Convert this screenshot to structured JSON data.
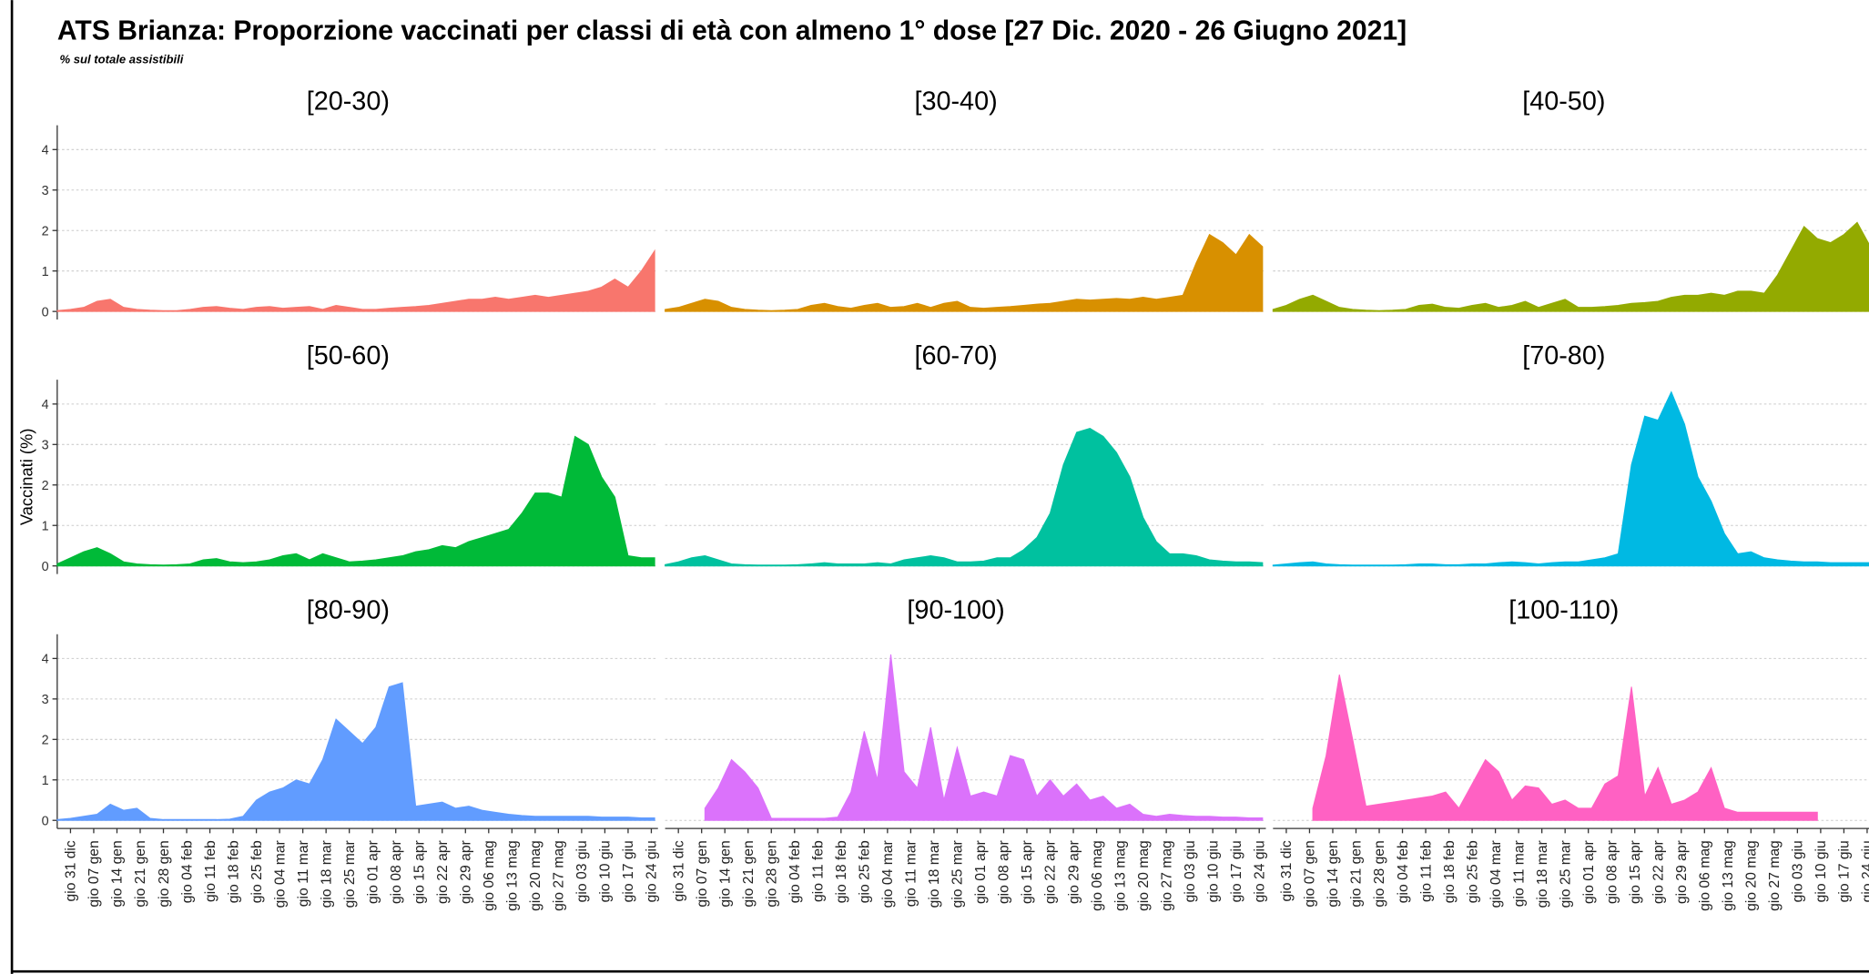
{
  "chart_data": {
    "type": "area",
    "title": "ATS Brianza: Proporzione vaccinati per classi di età con almeno 1° dose [27 Dic. 2020 - 26 Giugno 2021]",
    "subtitle": "% sul totale assistibili",
    "ylabel": "Vaccinati (%)",
    "x": [
      -4,
      0,
      4,
      8,
      12,
      16,
      20,
      24,
      28,
      32,
      36,
      40,
      44,
      48,
      52,
      56,
      60,
      64,
      68,
      72,
      76,
      80,
      84,
      88,
      92,
      96,
      100,
      104,
      108,
      112,
      116,
      120,
      124,
      128,
      132,
      136,
      140,
      144,
      148,
      152,
      156,
      160,
      164,
      168,
      172,
      176
    ],
    "xlim": [
      -4,
      177
    ],
    "xticks": [
      {
        "value": 0,
        "label": "gio 31 dic"
      },
      {
        "value": 7,
        "label": "gio 07 gen"
      },
      {
        "value": 14,
        "label": "gio 14 gen"
      },
      {
        "value": 21,
        "label": "gio 21 gen"
      },
      {
        "value": 28,
        "label": "gio 28 gen"
      },
      {
        "value": 35,
        "label": "gio 04 feb"
      },
      {
        "value": 42,
        "label": "gio 11 feb"
      },
      {
        "value": 49,
        "label": "gio 18 feb"
      },
      {
        "value": 56,
        "label": "gio 25 feb"
      },
      {
        "value": 63,
        "label": "gio 04 mar"
      },
      {
        "value": 70,
        "label": "gio 11 mar"
      },
      {
        "value": 77,
        "label": "gio 18 mar"
      },
      {
        "value": 84,
        "label": "gio 25 mar"
      },
      {
        "value": 91,
        "label": "gio 01 apr"
      },
      {
        "value": 98,
        "label": "gio 08 apr"
      },
      {
        "value": 105,
        "label": "gio 15 apr"
      },
      {
        "value": 112,
        "label": "gio 22 apr"
      },
      {
        "value": 119,
        "label": "gio 29 apr"
      },
      {
        "value": 126,
        "label": "gio 06 mag"
      },
      {
        "value": 133,
        "label": "gio 13 mag"
      },
      {
        "value": 140,
        "label": "gio 20 mag"
      },
      {
        "value": 147,
        "label": "gio 27 mag"
      },
      {
        "value": 154,
        "label": "gio 03 giu"
      },
      {
        "value": 161,
        "label": "gio 10 giu"
      },
      {
        "value": 168,
        "label": "gio 17 giu"
      },
      {
        "value": 175,
        "label": "gio 24 giu"
      }
    ],
    "ylim": [
      -0.2,
      4.6
    ],
    "yticks": [
      0,
      1,
      2,
      3,
      4
    ],
    "grid": true,
    "facets": [
      {
        "name": "[20-30)",
        "color": "#F8766D",
        "values": [
          0.02,
          0.05,
          0.1,
          0.25,
          0.3,
          0.1,
          0.05,
          0.03,
          0.02,
          0.02,
          0.05,
          0.1,
          0.12,
          0.08,
          0.05,
          0.1,
          0.12,
          0.08,
          0.1,
          0.12,
          0.05,
          0.15,
          0.1,
          0.05,
          0.05,
          0.08,
          0.1,
          0.12,
          0.15,
          0.2,
          0.25,
          0.3,
          0.3,
          0.35,
          0.3,
          0.35,
          0.4,
          0.35,
          0.4,
          0.45,
          0.5,
          0.6,
          0.8,
          0.6,
          1.0,
          1.5
        ]
      },
      {
        "name": "[30-40)",
        "color": "#D89000",
        "values": [
          0.05,
          0.1,
          0.2,
          0.3,
          0.25,
          0.1,
          0.05,
          0.03,
          0.02,
          0.03,
          0.05,
          0.15,
          0.2,
          0.12,
          0.08,
          0.15,
          0.2,
          0.1,
          0.12,
          0.2,
          0.1,
          0.2,
          0.25,
          0.1,
          0.08,
          0.1,
          0.12,
          0.15,
          0.18,
          0.2,
          0.25,
          0.3,
          0.28,
          0.3,
          0.32,
          0.3,
          0.35,
          0.3,
          0.35,
          0.4,
          1.2,
          1.9,
          1.7,
          1.4,
          1.9,
          1.6
        ]
      },
      {
        "name": "[40-50)",
        "color": "#93AA00",
        "values": [
          0.05,
          0.15,
          0.3,
          0.4,
          0.25,
          0.1,
          0.05,
          0.03,
          0.02,
          0.03,
          0.05,
          0.15,
          0.18,
          0.1,
          0.08,
          0.15,
          0.2,
          0.1,
          0.15,
          0.25,
          0.1,
          0.2,
          0.3,
          0.1,
          0.1,
          0.12,
          0.15,
          0.2,
          0.22,
          0.25,
          0.35,
          0.4,
          0.4,
          0.45,
          0.4,
          0.5,
          0.5,
          0.45,
          0.9,
          1.5,
          2.1,
          1.8,
          1.7,
          1.9,
          2.2,
          1.6
        ]
      },
      {
        "name": "[50-60)",
        "color": "#00BA38",
        "values": [
          0.05,
          0.2,
          0.35,
          0.45,
          0.3,
          0.1,
          0.05,
          0.03,
          0.02,
          0.03,
          0.05,
          0.15,
          0.18,
          0.1,
          0.08,
          0.1,
          0.15,
          0.25,
          0.3,
          0.15,
          0.3,
          0.2,
          0.1,
          0.12,
          0.15,
          0.2,
          0.25,
          0.35,
          0.4,
          0.5,
          0.45,
          0.6,
          0.7,
          0.8,
          0.9,
          1.3,
          1.8,
          1.8,
          1.7,
          3.2,
          3.0,
          2.2,
          1.7,
          0.25,
          0.2,
          0.2
        ]
      },
      {
        "name": "[60-70)",
        "color": "#00C19F",
        "values": [
          0.03,
          0.1,
          0.2,
          0.25,
          0.15,
          0.05,
          0.03,
          0.02,
          0.02,
          0.02,
          0.03,
          0.05,
          0.08,
          0.05,
          0.05,
          0.05,
          0.08,
          0.05,
          0.15,
          0.2,
          0.25,
          0.2,
          0.1,
          0.1,
          0.12,
          0.2,
          0.2,
          0.4,
          0.7,
          1.3,
          2.5,
          3.3,
          3.4,
          3.2,
          2.8,
          2.2,
          1.2,
          0.6,
          0.3,
          0.3,
          0.25,
          0.15,
          0.12,
          0.1,
          0.1,
          0.08
        ]
      },
      {
        "name": "[70-80)",
        "color": "#00B9E3",
        "values": [
          0.02,
          0.05,
          0.08,
          0.1,
          0.05,
          0.03,
          0.02,
          0.02,
          0.02,
          0.02,
          0.03,
          0.05,
          0.05,
          0.03,
          0.03,
          0.05,
          0.05,
          0.08,
          0.1,
          0.08,
          0.05,
          0.08,
          0.1,
          0.1,
          0.15,
          0.2,
          0.3,
          2.5,
          3.7,
          3.6,
          4.3,
          3.5,
          2.2,
          1.6,
          0.8,
          0.3,
          0.35,
          0.2,
          0.15,
          0.12,
          0.1,
          0.1,
          0.08,
          0.08,
          0.08,
          0.08
        ]
      },
      {
        "name": "[80-90)",
        "color": "#619CFF",
        "values": [
          0.02,
          0.05,
          0.1,
          0.15,
          0.4,
          0.25,
          0.3,
          0.05,
          0.02,
          0.02,
          0.02,
          0.02,
          0.02,
          0.03,
          0.1,
          0.5,
          0.7,
          0.8,
          1.0,
          0.9,
          1.5,
          2.5,
          2.2,
          1.9,
          2.3,
          3.3,
          3.4,
          0.35,
          0.4,
          0.45,
          0.3,
          0.35,
          0.25,
          0.2,
          0.15,
          0.12,
          0.1,
          0.1,
          0.1,
          0.1,
          0.1,
          0.08,
          0.08,
          0.08,
          0.06,
          0.06
        ]
      },
      {
        "name": "[90-100)",
        "color": "#DB72FB",
        "values": [
          null,
          null,
          null,
          0.3,
          0.8,
          1.5,
          1.2,
          0.8,
          0.05,
          0.05,
          0.05,
          0.05,
          0.05,
          0.08,
          0.7,
          2.2,
          1.0,
          4.1,
          1.2,
          0.8,
          2.3,
          0.5,
          1.8,
          0.6,
          0.7,
          0.6,
          1.6,
          1.5,
          0.6,
          1.0,
          0.6,
          0.9,
          0.5,
          0.6,
          0.3,
          0.4,
          0.15,
          0.1,
          0.15,
          0.12,
          0.1,
          0.1,
          0.08,
          0.08,
          0.06,
          0.06
        ]
      },
      {
        "name": "[100-110)",
        "color": "#FF61C3",
        "values": [
          null,
          null,
          null,
          0.3,
          1.6,
          3.6,
          2.0,
          0.35,
          0.4,
          0.45,
          0.5,
          0.55,
          0.6,
          0.7,
          0.3,
          0.9,
          1.5,
          1.2,
          0.5,
          0.85,
          0.8,
          0.4,
          0.5,
          0.3,
          0.3,
          0.9,
          1.1,
          3.3,
          0.6,
          1.3,
          0.4,
          0.5,
          0.7,
          1.3,
          0.3,
          0.2,
          0.2,
          0.2,
          0.2,
          0.2,
          0.2,
          0.2,
          null,
          null,
          null,
          null
        ]
      }
    ]
  }
}
